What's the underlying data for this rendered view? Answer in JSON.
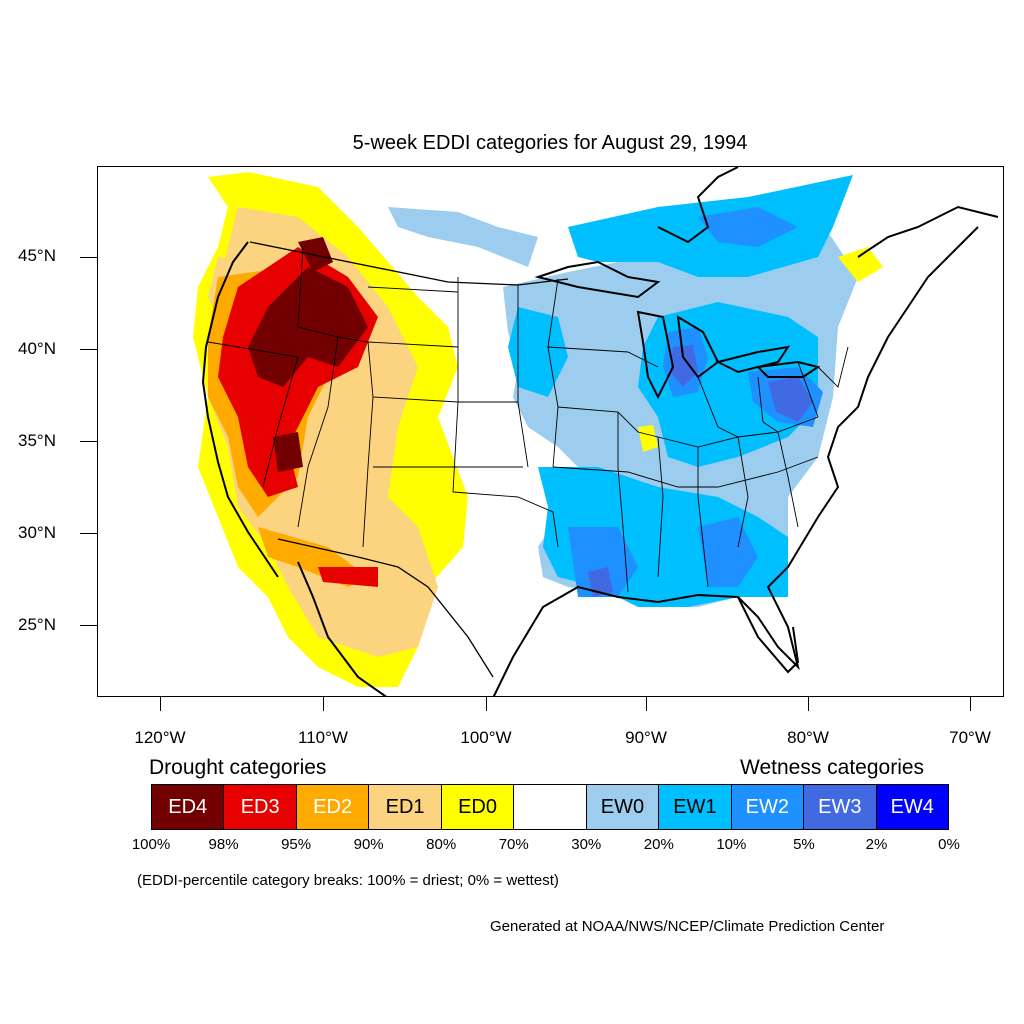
{
  "title": "5-week EDDI categories for August 29, 1994",
  "y_ticks": [
    "45°N",
    "40°N",
    "35°N",
    "30°N",
    "25°N"
  ],
  "x_ticks": [
    "120°W",
    "110°W",
    "100°W",
    "90°W",
    "80°W",
    "70°W"
  ],
  "legend": {
    "drought_title": "Drought categories",
    "wetness_title": "Wetness categories",
    "categories": [
      {
        "label": "ED4",
        "color": "#730000",
        "text_color": "#ffffff"
      },
      {
        "label": "ED3",
        "color": "#e60000",
        "text_color": "#ffffff"
      },
      {
        "label": "ED2",
        "color": "#ffaa00",
        "text_color": "#ffffff"
      },
      {
        "label": "ED1",
        "color": "#fcd37f",
        "text_color": "#000000"
      },
      {
        "label": "ED0",
        "color": "#ffff00",
        "text_color": "#000000"
      },
      {
        "label": "",
        "color": "#ffffff",
        "text_color": "#000000"
      },
      {
        "label": "EW0",
        "color": "#9ccdee",
        "text_color": "#000000"
      },
      {
        "label": "EW1",
        "color": "#00bfff",
        "text_color": "#000000"
      },
      {
        "label": "EW2",
        "color": "#1e90ff",
        "text_color": "#ffffff"
      },
      {
        "label": "EW3",
        "color": "#4169e1",
        "text_color": "#ffffff"
      },
      {
        "label": "EW4",
        "color": "#0000ff",
        "text_color": "#ffffff"
      }
    ],
    "breaks": [
      "100%",
      "98%",
      "95%",
      "90%",
      "80%",
      "70%",
      "30%",
      "20%",
      "10%",
      "5%",
      "2%",
      "0%"
    ]
  },
  "footnote": "(EDDI-percentile category breaks: 100% = driest; 0% = wettest)",
  "credit": "Generated at NOAA/NWS/NCEP/Climate Prediction Center"
}
